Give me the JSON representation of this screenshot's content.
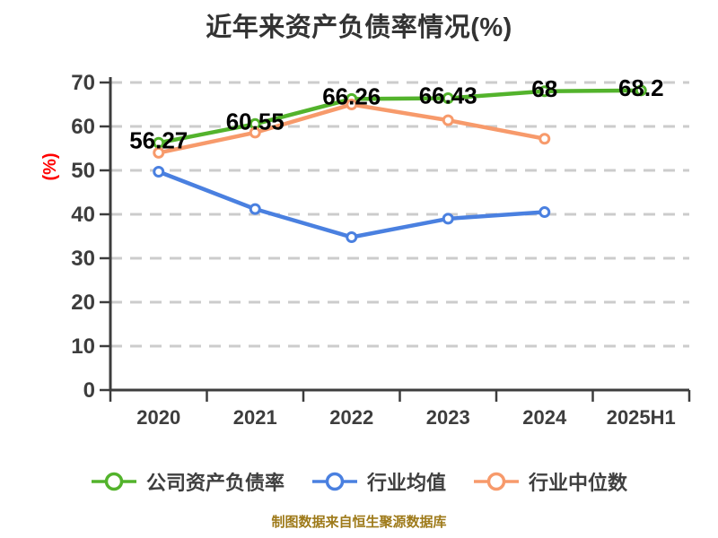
{
  "title": "近年来资产负债率情况(%)",
  "footer": "制图数据来自恒生聚源数据库",
  "chart_data": {
    "type": "line",
    "title": "近年来资产负债率情况(%)",
    "categories": [
      "2020",
      "2021",
      "2022",
      "2023",
      "2024",
      "2025H1"
    ],
    "xlabel": "",
    "ylabel": "(%)",
    "ylim": [
      0,
      70
    ],
    "yticks": [
      0,
      10,
      20,
      30,
      40,
      50,
      60,
      70
    ],
    "grid": "horizontal-dashed",
    "legend_position": "bottom",
    "source_note": "制图数据来自恒生聚源数据库",
    "colors": {
      "axis": "#3d3d3d",
      "grid": "#cccccc",
      "ylabel": "#ff0000",
      "point_label": "#000000",
      "marker_fill": "#ffffff"
    },
    "series": [
      {
        "id": "company-debt-ratio",
        "name": "公司资产负债率",
        "color": "#53B32C",
        "values": [
          56.27,
          60.55,
          66.26,
          66.43,
          68,
          68.2
        ],
        "show_point_labels": true,
        "point_labels": [
          "56.27",
          "60.55",
          "66.26",
          "66.43",
          "68",
          "68.2"
        ]
      },
      {
        "id": "industry-mean",
        "name": "行业均值",
        "color": "#4A80E0",
        "values": [
          49.7,
          41.2,
          34.8,
          39.0,
          40.5,
          null
        ],
        "show_point_labels": false,
        "point_labels": []
      },
      {
        "id": "industry-median",
        "name": "行业中位数",
        "color": "#F79A6B",
        "values": [
          54.0,
          58.6,
          65.0,
          61.4,
          57.2,
          null
        ],
        "show_point_labels": false,
        "point_labels": []
      }
    ]
  }
}
